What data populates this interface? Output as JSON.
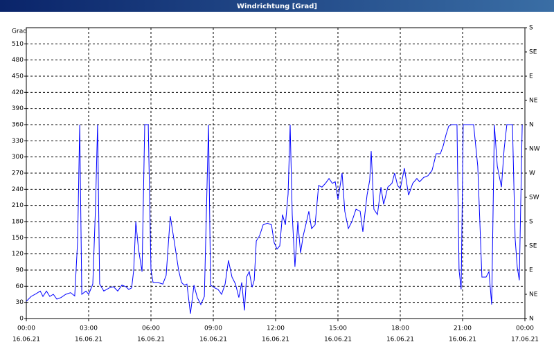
{
  "chart_data": {
    "type": "line",
    "title": "Windrichtung [Grad]",
    "ylabel": "Grad",
    "x": [
      0,
      0.23,
      0.47,
      0.67,
      0.8,
      0.97,
      1.13,
      1.3,
      1.47,
      1.67,
      1.9,
      2.13,
      2.33,
      2.47,
      2.57,
      2.67,
      2.87,
      3,
      3.2,
      3.33,
      3.43,
      3.53,
      3.73,
      4,
      4.2,
      4.4,
      4.6,
      4.8,
      4.93,
      5.07,
      5.17,
      5.27,
      5.4,
      5.57,
      5.7,
      5.87,
      6,
      6.1,
      6.33,
      6.57,
      6.73,
      6.93,
      7.13,
      7.33,
      7.47,
      7.6,
      7.73,
      7.9,
      8.07,
      8.23,
      8.4,
      8.57,
      8.77,
      8.87,
      9.07,
      9.23,
      9.4,
      9.57,
      9.73,
      9.9,
      10.07,
      10.23,
      10.37,
      10.5,
      10.6,
      10.73,
      10.87,
      10.97,
      11.07,
      11.23,
      11.4,
      11.6,
      11.8,
      11.93,
      12.07,
      12.2,
      12.33,
      12.47,
      12.6,
      12.7,
      12.8,
      12.93,
      13.07,
      13.2,
      13.33,
      13.47,
      13.6,
      13.73,
      13.9,
      14.07,
      14.23,
      14.4,
      14.57,
      14.73,
      14.87,
      15,
      15.2,
      15.33,
      15.5,
      15.67,
      15.87,
      16.07,
      16.2,
      16.4,
      16.53,
      16.6,
      16.73,
      16.9,
      17.07,
      17.2,
      17.4,
      17.6,
      17.73,
      17.87,
      18,
      18.2,
      18.4,
      18.6,
      18.8,
      18.93,
      19.13,
      19.33,
      19.53,
      19.73,
      19.93,
      20.07,
      20.2,
      20.33,
      20.47,
      20.73,
      20.83,
      20.93,
      21.03,
      21.27,
      21.53,
      21.73,
      21.93,
      22.13,
      22.27,
      22.4,
      22.53,
      22.67,
      22.87,
      23,
      23.13,
      23.4,
      23.53,
      23.63,
      23.73,
      23.87
    ],
    "series": [
      {
        "name": "Windrichtung",
        "color": "#0000ff",
        "values": [
          32,
          41,
          46,
          51,
          41,
          51,
          41,
          45,
          36,
          39,
          45,
          48,
          42,
          144,
          360,
          45,
          51,
          45,
          64,
          206,
          360,
          64,
          51,
          57,
          59,
          51,
          62,
          59,
          54,
          57,
          90,
          180,
          129,
          87,
          360,
          360,
          90,
          67,
          67,
          64,
          80,
          190,
          141,
          90,
          67,
          62,
          64,
          9,
          62,
          39,
          26,
          41,
          360,
          62,
          57,
          54,
          45,
          64,
          108,
          77,
          64,
          39,
          67,
          15,
          77,
          87,
          58,
          71,
          144,
          154,
          174,
          177,
          174,
          141,
          129,
          135,
          193,
          174,
          231,
          360,
          193,
          96,
          180,
          122,
          154,
          177,
          199,
          167,
          174,
          247,
          244,
          251,
          260,
          251,
          254,
          221,
          270,
          199,
          167,
          180,
          203,
          199,
          161,
          229,
          257,
          311,
          203,
          193,
          244,
          212,
          244,
          251,
          270,
          247,
          241,
          279,
          229,
          251,
          260,
          254,
          262,
          265,
          275,
          306,
          306,
          321,
          341,
          357,
          360,
          360,
          90,
          54,
          360,
          360,
          360,
          283,
          77,
          77,
          87,
          26,
          360,
          283,
          244,
          315,
          360,
          360,
          148,
          96,
          71,
          360
        ]
      }
    ],
    "xlim": [
      0,
      24
    ],
    "xticks": [
      {
        "value": 0,
        "label": "00:00"
      },
      {
        "value": 3,
        "label": "03:00"
      },
      {
        "value": 6,
        "label": "06:00"
      },
      {
        "value": 9,
        "label": "09:00"
      },
      {
        "value": 12,
        "label": "12:00"
      },
      {
        "value": 15,
        "label": "15:00"
      },
      {
        "value": 18,
        "label": "18:00"
      },
      {
        "value": 21,
        "label": "21:00"
      },
      {
        "value": 24,
        "label": "00:00"
      }
    ],
    "xtick_dates": [
      "16.06.21",
      "16.06.21",
      "16.06.21",
      "16.06.21",
      "16.06.21",
      "16.06.21",
      "16.06.21",
      "16.06.21",
      "17.06.21"
    ],
    "ylim": [
      0,
      540
    ],
    "yticks": [
      0,
      30,
      60,
      90,
      120,
      150,
      180,
      210,
      240,
      270,
      300,
      330,
      360,
      390,
      420,
      450,
      480,
      510
    ],
    "y2lim": [
      0,
      540
    ],
    "y2ticks": [
      {
        "value": 0,
        "label": "N"
      },
      {
        "value": 45,
        "label": "NE"
      },
      {
        "value": 90,
        "label": "E"
      },
      {
        "value": 135,
        "label": "SE"
      },
      {
        "value": 180,
        "label": "S"
      },
      {
        "value": 225,
        "label": "SW"
      },
      {
        "value": 270,
        "label": "W"
      },
      {
        "value": 315,
        "label": "NW"
      },
      {
        "value": 360,
        "label": "N"
      },
      {
        "value": 405,
        "label": "NE"
      },
      {
        "value": 450,
        "label": "E"
      },
      {
        "value": 495,
        "label": "SE"
      },
      {
        "value": 540,
        "label": "S"
      }
    ],
    "grid": true
  }
}
